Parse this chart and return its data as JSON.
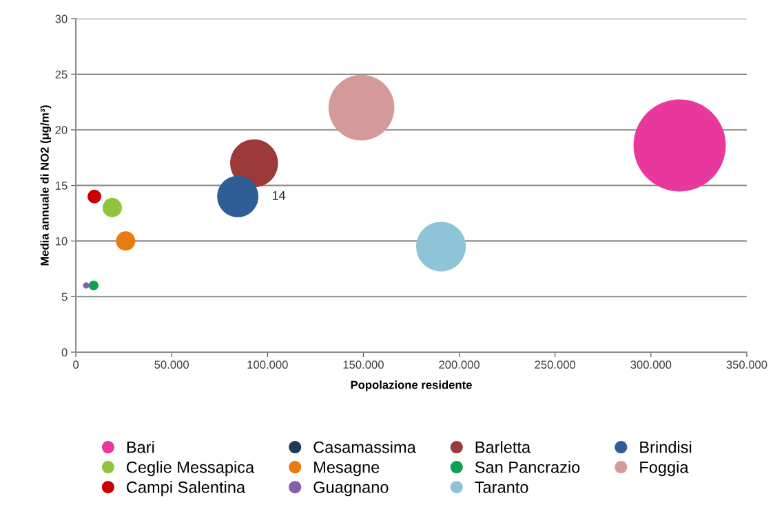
{
  "chart_data": {
    "type": "bubble",
    "xlabel": "Popolazione residente",
    "ylabel": "Media annuale di NO2 (μg/m³)",
    "xlim": [
      0,
      350000
    ],
    "xticks": [
      0,
      {
        "value": 50000,
        "label": "50.000"
      },
      {
        "value": 100000,
        "label": "100.000"
      },
      {
        "value": 150000,
        "label": "150.000"
      },
      {
        "value": 200000,
        "label": "200.000"
      },
      {
        "value": 250000,
        "label": "250.000"
      },
      {
        "value": 300000,
        "label": "300.000"
      },
      {
        "value": 350000,
        "label": "350.000"
      }
    ],
    "ylim": [
      0,
      30
    ],
    "yticks": [
      0,
      5,
      10,
      15,
      20,
      25,
      30
    ],
    "grid": "y",
    "legend": "bottom",
    "series": [
      {
        "name": "Bari",
        "color": "#e8389e",
        "x": [
          315000
        ],
        "values": [
          18.6
        ],
        "sizes": [
          1
        ]
      },
      {
        "name": "Casamassima",
        "color": "#1f3b5c",
        "x": [
          null
        ],
        "values": [
          null
        ],
        "sizes": [
          null
        ]
      },
      {
        "name": "Barletta",
        "color": "#9c3a3a",
        "x": [
          93000
        ],
        "values": [
          17
        ],
        "sizes": [
          0.27
        ]
      },
      {
        "name": "Brindisi",
        "color": "#2e5e95",
        "x": [
          84500
        ],
        "values": [
          14
        ],
        "sizes": [
          0.2
        ],
        "value_labels": [
          "14"
        ]
      },
      {
        "name": "Ceglie Messapica",
        "color": "#8cc63f",
        "x": [
          19000
        ],
        "values": [
          13
        ],
        "sizes": [
          0.044
        ]
      },
      {
        "name": "Mesagne",
        "color": "#e87b10",
        "x": [
          26000
        ],
        "values": [
          10
        ],
        "sizes": [
          0.044
        ]
      },
      {
        "name": "San Pancrazio",
        "color": "#10a050",
        "x": [
          9300
        ],
        "values": [
          6
        ],
        "sizes": [
          0.011
        ]
      },
      {
        "name": "Foggia",
        "color": "#d49a9a",
        "x": [
          149000
        ],
        "values": [
          22
        ],
        "sizes": [
          0.51
        ]
      },
      {
        "name": "Campi Salentina",
        "color": "#cc0000",
        "x": [
          9700
        ],
        "values": [
          14
        ],
        "sizes": [
          0.022
        ]
      },
      {
        "name": "Guagnano",
        "color": "#8060a8",
        "x": [
          5400
        ],
        "values": [
          6
        ],
        "sizes": [
          0.0045
        ]
      },
      {
        "name": "Taranto",
        "color": "#8ec4d8",
        "x": [
          190500
        ],
        "values": [
          9.5
        ],
        "sizes": [
          0.29
        ]
      }
    ]
  }
}
